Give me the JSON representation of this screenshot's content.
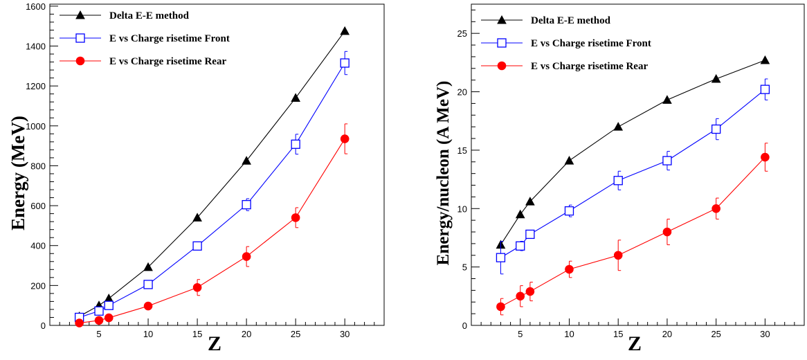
{
  "chart_data": [
    {
      "type": "line",
      "title": "",
      "xlabel": "Z",
      "ylabel": "Energy (MeV)",
      "xlim": [
        0,
        34
      ],
      "ylim": [
        0,
        1610
      ],
      "xticks": [
        5,
        10,
        15,
        20,
        25,
        30
      ],
      "yticks": [
        0,
        200,
        400,
        600,
        800,
        1000,
        1200,
        1400,
        1600
      ],
      "grid": false,
      "legend": "top-left",
      "series": [
        {
          "name": "Delta E-E method",
          "color": "#000000",
          "marker": "filled-triangle",
          "x": [
            3,
            5,
            6,
            10,
            15,
            20,
            25,
            30
          ],
          "y": [
            45,
            100,
            135,
            292,
            540,
            825,
            1140,
            1475
          ],
          "err": [
            0,
            0,
            0,
            0,
            0,
            0,
            0,
            0
          ]
        },
        {
          "name": "E vs Charge risetime Front",
          "color": "#0000ff",
          "marker": "open-square",
          "x": [
            3,
            5,
            6,
            10,
            15,
            20,
            25,
            30
          ],
          "y": [
            40,
            72,
            100,
            205,
            398,
            605,
            908,
            1315
          ],
          "err": [
            10,
            10,
            10,
            15,
            20,
            30,
            50,
            58
          ]
        },
        {
          "name": "E vs Charge risetime Rear",
          "color": "#ff0000",
          "marker": "filled-circle",
          "x": [
            3,
            5,
            6,
            10,
            15,
            20,
            25,
            30
          ],
          "y": [
            12,
            25,
            38,
            97,
            190,
            345,
            540,
            935
          ],
          "err": [
            5,
            8,
            10,
            15,
            40,
            50,
            50,
            75
          ]
        }
      ]
    },
    {
      "type": "line",
      "title": "",
      "xlabel": "Z",
      "ylabel": "Energy/nucleon (A MeV)",
      "xlim": [
        0,
        34
      ],
      "ylim": [
        0,
        27.5
      ],
      "xticks": [
        5,
        10,
        15,
        20,
        25,
        30
      ],
      "yticks": [
        0,
        5,
        10,
        15,
        20,
        25
      ],
      "grid": false,
      "legend": "top-left",
      "series": [
        {
          "name": "Delta E-E method",
          "color": "#000000",
          "marker": "filled-triangle",
          "x": [
            3,
            5,
            6,
            10,
            15,
            20,
            25,
            30
          ],
          "y": [
            6.9,
            9.5,
            10.6,
            14.1,
            17.0,
            19.3,
            21.1,
            22.7
          ],
          "err": [
            0,
            0,
            0,
            0,
            0,
            0,
            0,
            0
          ]
        },
        {
          "name": "E vs Charge risetime Front",
          "color": "#0000ff",
          "marker": "open-square",
          "x": [
            3,
            5,
            6,
            10,
            15,
            20,
            25,
            30
          ],
          "y": [
            5.8,
            6.8,
            7.8,
            9.8,
            12.4,
            14.1,
            16.8,
            20.2
          ],
          "err": [
            1.4,
            0.4,
            0.3,
            0.5,
            0.8,
            0.8,
            0.9,
            0.9
          ]
        },
        {
          "name": "E vs Charge risetime Rear",
          "color": "#ff0000",
          "marker": "filled-circle",
          "x": [
            3,
            5,
            6,
            10,
            15,
            20,
            25,
            30
          ],
          "y": [
            1.6,
            2.5,
            2.9,
            4.8,
            6.0,
            8.0,
            10.0,
            14.4
          ],
          "err": [
            0.7,
            0.9,
            0.8,
            0.7,
            1.3,
            1.1,
            0.9,
            1.2
          ]
        }
      ]
    }
  ]
}
